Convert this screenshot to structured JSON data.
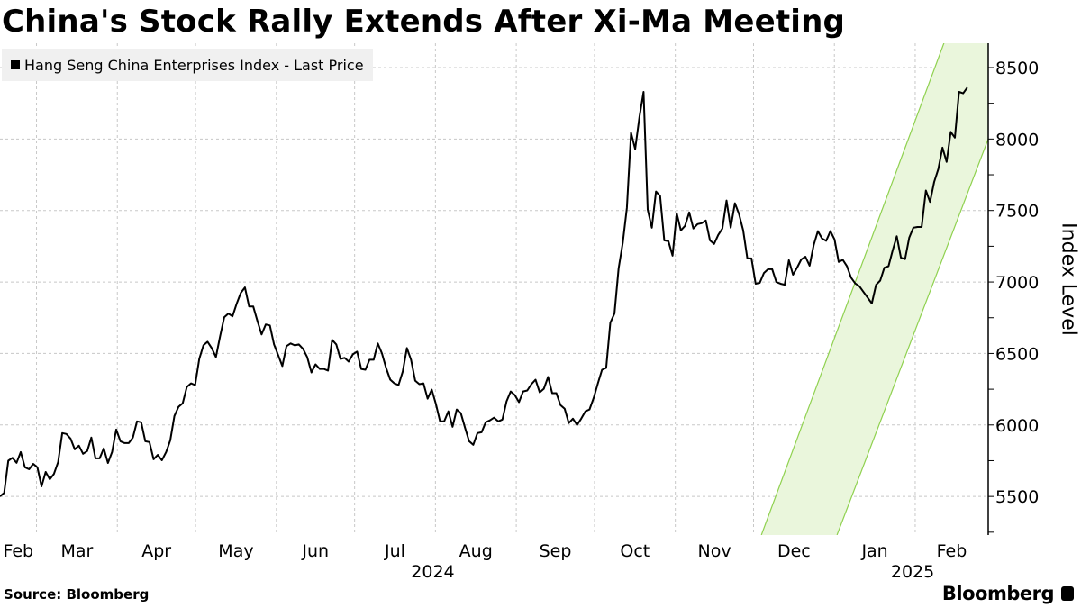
{
  "chart_data": {
    "type": "line",
    "title": "China's Stock Rally Extends After Xi-Ma Meeting",
    "ylabel": "Index Level",
    "xlabel": "",
    "ylim": [
      5230,
      8670
    ],
    "xlim": [
      "2024-02-16",
      "2025-03-01"
    ],
    "grid": true,
    "legend_position": "top-left",
    "y_ticks": [
      5500,
      6000,
      6500,
      7000,
      7500,
      8000,
      8500
    ],
    "y_tick_labels": [
      "5500",
      "6000",
      "6500",
      "7000",
      "7500",
      "8000",
      "8500"
    ],
    "x_ticks": [
      {
        "month_start": "2024-02-01",
        "label": "Feb"
      },
      {
        "month_start": "2024-03-01",
        "label": "Mar"
      },
      {
        "month_start": "2024-04-01",
        "label": "Apr"
      },
      {
        "month_start": "2024-05-01",
        "label": "May"
      },
      {
        "month_start": "2024-06-01",
        "label": "Jun"
      },
      {
        "month_start": "2024-07-01",
        "label": "Jul"
      },
      {
        "month_start": "2024-08-01",
        "label": "Aug"
      },
      {
        "month_start": "2024-09-01",
        "label": "Sep"
      },
      {
        "month_start": "2024-10-01",
        "label": "Oct"
      },
      {
        "month_start": "2024-11-01",
        "label": "Nov"
      },
      {
        "month_start": "2024-12-01",
        "label": "Dec"
      },
      {
        "month_start": "2025-01-01",
        "label": "Jan"
      },
      {
        "month_start": "2025-02-01",
        "label": "Feb"
      }
    ],
    "year_labels": [
      {
        "center": "2024-07-31",
        "label": "2024"
      },
      {
        "center": "2025-01-31",
        "label": "2025"
      }
    ],
    "series": [
      {
        "name": "Hang Seng China Enterprises Index - Last Price",
        "color": "#000000",
        "date_start": "2024-02-16",
        "date_end": "2025-02-21",
        "spacing": "even",
        "values": [
          5500,
          5525,
          5750,
          5770,
          5735,
          5810,
          5703,
          5690,
          5728,
          5703,
          5570,
          5671,
          5620,
          5658,
          5740,
          5943,
          5937,
          5905,
          5829,
          5855,
          5798,
          5817,
          5912,
          5766,
          5766,
          5836,
          5734,
          5810,
          5968,
          5886,
          5873,
          5873,
          5912,
          6025,
          6019,
          5886,
          5880,
          5760,
          5791,
          5753,
          5810,
          5892,
          6063,
          6127,
          6152,
          6266,
          6291,
          6279,
          6462,
          6557,
          6582,
          6538,
          6475,
          6620,
          6753,
          6779,
          6760,
          6848,
          6924,
          6962,
          6829,
          6829,
          6728,
          6633,
          6703,
          6696,
          6563,
          6488,
          6412,
          6551,
          6570,
          6557,
          6563,
          6532,
          6475,
          6367,
          6424,
          6392,
          6392,
          6380,
          6595,
          6563,
          6462,
          6469,
          6443,
          6494,
          6513,
          6392,
          6386,
          6456,
          6456,
          6570,
          6500,
          6399,
          6317,
          6291,
          6279,
          6374,
          6538,
          6456,
          6310,
          6285,
          6291,
          6184,
          6247,
          6146,
          6025,
          6025,
          6095,
          5987,
          6108,
          6082,
          5981,
          5886,
          5861,
          5943,
          5949,
          6019,
          6032,
          6051,
          6025,
          6038,
          6165,
          6234,
          6209,
          6159,
          6234,
          6241,
          6285,
          6317,
          6228,
          6253,
          6336,
          6222,
          6222,
          6139,
          6114,
          6013,
          6044,
          6000,
          6044,
          6095,
          6108,
          6190,
          6291,
          6386,
          6399,
          6715,
          6779,
          7095,
          7272,
          7519,
          8044,
          7930,
          8152,
          8330,
          7506,
          7380,
          7633,
          7601,
          7291,
          7285,
          7184,
          7481,
          7361,
          7392,
          7487,
          7374,
          7405,
          7411,
          7430,
          7291,
          7266,
          7329,
          7374,
          7570,
          7380,
          7551,
          7475,
          7361,
          7165,
          7165,
          6988,
          6994,
          7063,
          7089,
          7089,
          7000,
          6988,
          6981,
          7152,
          7051,
          7101,
          7158,
          7177,
          7114,
          7259,
          7356,
          7305,
          7288,
          7356,
          7298,
          7140,
          7155,
          7110,
          7030,
          6990,
          6970,
          6930,
          6890,
          6850,
          6980,
          7010,
          7100,
          7110,
          7220,
          7320,
          7170,
          7160,
          7310,
          7380,
          7385,
          7385,
          7640,
          7560,
          7700,
          7790,
          7940,
          7840,
          8050,
          8010,
          8330,
          8320,
          8360
        ]
      }
    ],
    "trend_channel": {
      "fill": "#eaf6dc",
      "stroke": "#8fd14f",
      "upper_line": [
        [
          "2024-12-04",
          5230
        ],
        [
          "2025-02-12",
          8670
        ]
      ],
      "lower_line": [
        [
          "2025-01-02",
          5230
        ],
        [
          "2025-03-01",
          8000
        ]
      ]
    }
  },
  "footer": {
    "source": "Source: Bloomberg",
    "logo": "Bloomberg"
  }
}
